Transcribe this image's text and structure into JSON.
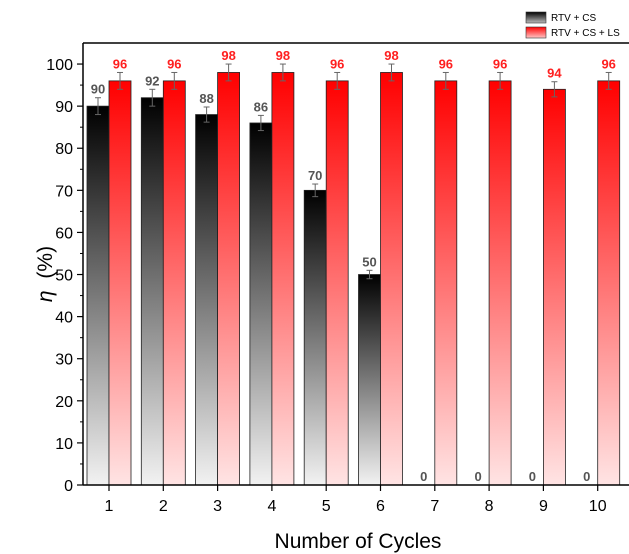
{
  "chart_data": {
    "type": "bar",
    "title": "",
    "xlabel": "Number of Cycles",
    "ylabel_symbol": "η",
    "ylabel_unit": "(%)",
    "categories": [
      "1",
      "2",
      "3",
      "4",
      "5",
      "6",
      "7",
      "8",
      "9",
      "10"
    ],
    "series": [
      {
        "name": "RTV + CS",
        "values": [
          90,
          92,
          88,
          86,
          70,
          50,
          0,
          0,
          0,
          0
        ],
        "errors": [
          2,
          2,
          1.8,
          1.8,
          1.5,
          1,
          0,
          0,
          0,
          0
        ],
        "label_color": "#555555",
        "gradient_top": "#000000",
        "gradient_bottom": "#f2f2f2"
      },
      {
        "name": "RTV + CS + LS",
        "values": [
          96,
          96,
          98,
          98,
          96,
          98,
          96,
          96,
          94,
          96
        ],
        "errors": [
          2,
          2,
          2,
          2,
          2,
          2,
          2,
          2,
          1.8,
          2
        ],
        "label_color": "#ff2020",
        "gradient_top": "#ff0000",
        "gradient_bottom": "#ffe4e4"
      }
    ],
    "ylim": [
      0,
      105
    ],
    "yticks": [
      0,
      10,
      20,
      30,
      40,
      50,
      60,
      70,
      80,
      90,
      100
    ],
    "legend_position": "top-right",
    "grid": false
  }
}
